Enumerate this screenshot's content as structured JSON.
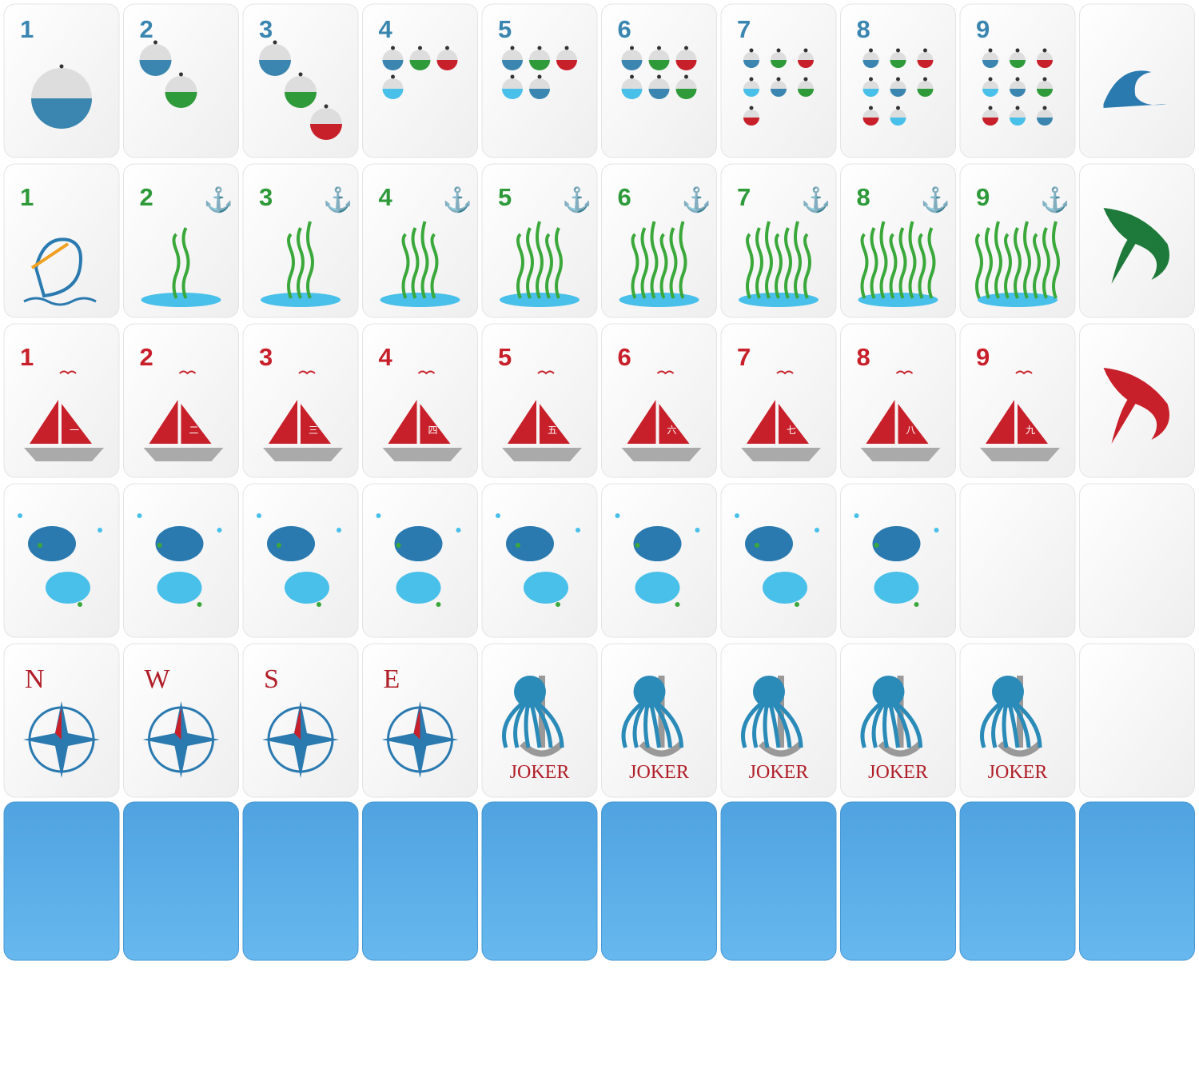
{
  "tiles": {
    "dots": {
      "numbers": [
        "1",
        "2",
        "3",
        "4",
        "5",
        "6",
        "7",
        "8",
        "9"
      ]
    },
    "bams": {
      "numbers": [
        "1",
        "2",
        "3",
        "4",
        "5",
        "6",
        "7",
        "8",
        "9"
      ]
    },
    "craks": {
      "numbers": [
        "1",
        "2",
        "3",
        "4",
        "5",
        "6",
        "7",
        "8",
        "9"
      ],
      "sail_marks": [
        "一",
        "二",
        "三",
        "四",
        "五",
        "六",
        "七",
        "八",
        "九"
      ]
    },
    "winds": [
      "N",
      "W",
      "S",
      "E"
    ],
    "jokers": [
      "JOKER",
      "JOKER",
      "JOKER",
      "JOKER",
      "JOKER"
    ]
  }
}
